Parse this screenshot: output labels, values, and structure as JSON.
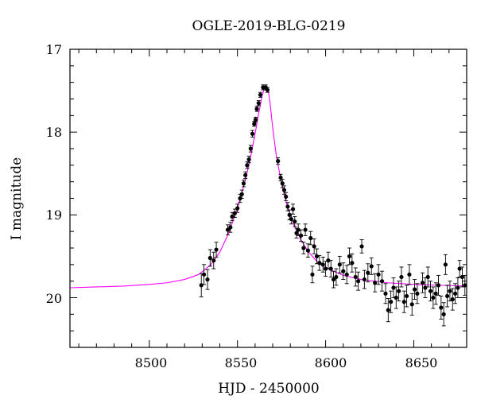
{
  "chart_data": {
    "type": "scatter",
    "title": "OGLE-2019-BLG-0219",
    "xlabel": "HJD - 2450000",
    "ylabel": "I magnitude",
    "xlim": [
      8455,
      8680
    ],
    "ylim": [
      20.6,
      17.0
    ],
    "y_inverted": true,
    "x_ticks": [
      "8500",
      "8550",
      "8600",
      "8650"
    ],
    "y_ticks": [
      "17",
      "18",
      "19",
      "20"
    ],
    "grid": false,
    "legend": "none",
    "colors": {
      "data": "#000000",
      "model": "#ff00ff"
    },
    "series": [
      {
        "kind": "data",
        "points": [
          [
            8529.5,
            19.85,
            0.14
          ],
          [
            8531.0,
            19.72,
            0.12
          ],
          [
            8533.0,
            19.78,
            0.12
          ],
          [
            8534.5,
            19.52,
            0.1
          ],
          [
            8536.5,
            19.55,
            0.1
          ],
          [
            8538.0,
            19.42,
            0.09
          ],
          [
            8544.5,
            19.18,
            0.06
          ],
          [
            8546.0,
            19.15,
            0.06
          ],
          [
            8547.0,
            19.02,
            0.05
          ],
          [
            8548.5,
            18.98,
            0.05
          ],
          [
            8550.0,
            18.92,
            0.05
          ],
          [
            8551.5,
            18.8,
            0.05
          ],
          [
            8552.5,
            18.75,
            0.05
          ],
          [
            8553.5,
            18.62,
            0.04
          ],
          [
            8554.5,
            18.52,
            0.04
          ],
          [
            8555.5,
            18.4,
            0.04
          ],
          [
            8556.5,
            18.33,
            0.04
          ],
          [
            8557.5,
            18.2,
            0.04
          ],
          [
            8558.5,
            18.02,
            0.04
          ],
          [
            8559.5,
            17.9,
            0.03
          ],
          [
            8560.3,
            17.85,
            0.03
          ],
          [
            8561.0,
            17.72,
            0.03
          ],
          [
            8562.0,
            17.65,
            0.03
          ],
          [
            8563.0,
            17.55,
            0.03
          ],
          [
            8564.5,
            17.46,
            0.03
          ],
          [
            8566.0,
            17.46,
            0.03
          ],
          [
            8567.0,
            17.49,
            0.03
          ],
          [
            8573.0,
            18.35,
            0.04
          ],
          [
            8574.5,
            18.55,
            0.04
          ],
          [
            8575.5,
            18.62,
            0.05
          ],
          [
            8576.5,
            18.7,
            0.05
          ],
          [
            8577.5,
            18.78,
            0.05
          ],
          [
            8578.5,
            18.9,
            0.05
          ],
          [
            8579.5,
            19.0,
            0.06
          ],
          [
            8580.5,
            19.05,
            0.06
          ],
          [
            8581.5,
            18.93,
            0.06
          ],
          [
            8582.5,
            19.08,
            0.06
          ],
          [
            8583.5,
            19.22,
            0.06
          ],
          [
            8584.5,
            19.18,
            0.07
          ],
          [
            8586.0,
            19.25,
            0.07
          ],
          [
            8587.5,
            19.4,
            0.07
          ],
          [
            8588.5,
            19.18,
            0.07
          ],
          [
            8590.0,
            19.43,
            0.08
          ],
          [
            8591.5,
            19.28,
            0.08
          ],
          [
            8592.5,
            19.72,
            0.1
          ],
          [
            8593.5,
            19.38,
            0.09
          ],
          [
            8595.0,
            19.5,
            0.09
          ],
          [
            8596.5,
            19.58,
            0.09
          ],
          [
            8598.5,
            19.6,
            0.09
          ],
          [
            8600.0,
            19.65,
            0.09
          ],
          [
            8601.5,
            19.55,
            0.1
          ],
          [
            8603.0,
            19.65,
            0.1
          ],
          [
            8604.5,
            19.78,
            0.1
          ],
          [
            8606.0,
            19.75,
            0.1
          ],
          [
            8608.0,
            19.6,
            0.1
          ],
          [
            8610.0,
            19.68,
            0.1
          ],
          [
            8612.0,
            19.72,
            0.11
          ],
          [
            8613.5,
            19.5,
            0.1
          ],
          [
            8615.0,
            19.58,
            0.11
          ],
          [
            8617.0,
            19.75,
            0.11
          ],
          [
            8618.5,
            19.8,
            0.11
          ],
          [
            8620.5,
            19.38,
            0.08
          ],
          [
            8622.0,
            19.78,
            0.11
          ],
          [
            8624.0,
            19.7,
            0.11
          ],
          [
            8626.0,
            19.62,
            0.1
          ],
          [
            8628.0,
            19.82,
            0.11
          ],
          [
            8630.0,
            19.72,
            0.12
          ],
          [
            8632.0,
            19.8,
            0.12
          ],
          [
            8634.0,
            19.95,
            0.12
          ],
          [
            8635.5,
            20.15,
            0.14
          ],
          [
            8637.0,
            20.05,
            0.13
          ],
          [
            8638.5,
            19.88,
            0.12
          ],
          [
            8640.0,
            20.0,
            0.13
          ],
          [
            8641.5,
            19.92,
            0.12
          ],
          [
            8643.0,
            19.75,
            0.12
          ],
          [
            8644.5,
            20.05,
            0.13
          ],
          [
            8646.0,
            19.98,
            0.13
          ],
          [
            8647.5,
            19.72,
            0.12
          ],
          [
            8649.0,
            20.08,
            0.13
          ],
          [
            8650.5,
            19.9,
            0.12
          ],
          [
            8652.0,
            19.95,
            0.12
          ],
          [
            8655.0,
            19.82,
            0.12
          ],
          [
            8656.5,
            19.88,
            0.12
          ],
          [
            8658.0,
            19.75,
            0.12
          ],
          [
            8659.5,
            19.92,
            0.12
          ],
          [
            8661.0,
            20.0,
            0.13
          ],
          [
            8662.5,
            19.95,
            0.13
          ],
          [
            8664.0,
            19.85,
            0.12
          ],
          [
            8665.5,
            20.12,
            0.14
          ],
          [
            8667.0,
            20.2,
            0.14
          ],
          [
            8668.0,
            19.6,
            0.12
          ],
          [
            8669.0,
            19.98,
            0.13
          ],
          [
            8670.5,
            19.92,
            0.12
          ],
          [
            8672.0,
            20.02,
            0.13
          ],
          [
            8673.5,
            19.95,
            0.12
          ],
          [
            8675.0,
            19.88,
            0.12
          ],
          [
            8676.0,
            19.65,
            0.1
          ],
          [
            8677.5,
            19.75,
            0.12
          ],
          [
            8679.0,
            19.85,
            0.12
          ]
        ]
      },
      {
        "kind": "model",
        "x": [
          8455,
          8470,
          8485,
          8500,
          8510,
          8520,
          8528,
          8535,
          8540,
          8545,
          8550,
          8554,
          8557,
          8560,
          8562,
          8564,
          8565.5,
          8566.5,
          8567.5,
          8568.5,
          8570,
          8572,
          8575,
          8578,
          8582,
          8586,
          8590,
          8595,
          8600,
          8610,
          8620,
          8635,
          8650,
          8665,
          8680
        ],
        "y": [
          19.88,
          19.87,
          19.86,
          19.84,
          19.82,
          19.78,
          19.72,
          19.6,
          19.45,
          19.22,
          18.92,
          18.62,
          18.35,
          18.02,
          17.78,
          17.56,
          17.46,
          17.44,
          17.5,
          17.65,
          17.95,
          18.28,
          18.62,
          18.88,
          19.12,
          19.3,
          19.44,
          19.56,
          19.64,
          19.73,
          19.78,
          19.82,
          19.84,
          19.85,
          19.86
        ]
      }
    ]
  }
}
